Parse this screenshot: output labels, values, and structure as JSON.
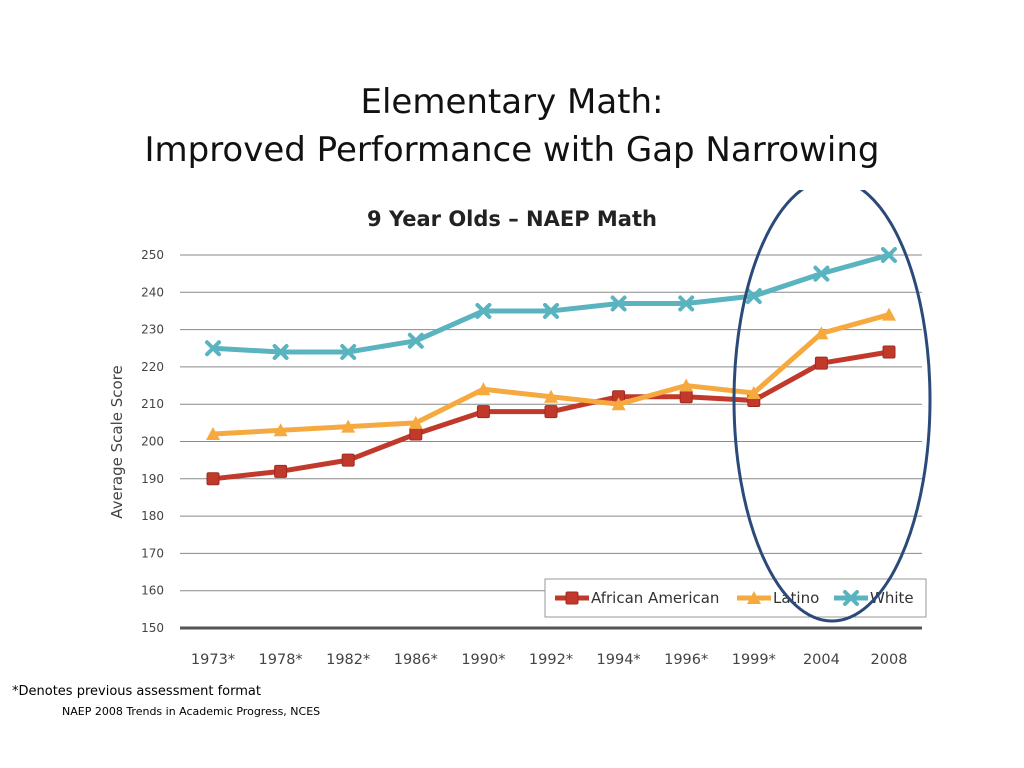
{
  "slide": {
    "title_line1": "Elementary Math:",
    "title_line2": "Improved Performance with Gap Narrowing",
    "footnote": "*Denotes previous assessment format",
    "source": "NAEP 2008 Trends in Academic Progress, NCES"
  },
  "chart_data": {
    "type": "line",
    "title": "9 Year Olds – NAEP Math",
    "xlabel": "",
    "ylabel": "Average Scale Score",
    "ylim": [
      150,
      250
    ],
    "yticks": [
      150,
      160,
      170,
      180,
      190,
      200,
      210,
      220,
      230,
      240,
      250
    ],
    "grid": true,
    "legend_position": "bottom-right",
    "categories": [
      "1973*",
      "1978*",
      "1982*",
      "1986*",
      "1990*",
      "1992*",
      "1994*",
      "1996*",
      "1999*",
      "2004",
      "2008"
    ],
    "series": [
      {
        "name": "African American",
        "color": "#c0392b",
        "marker": "square",
        "values": [
          190,
          192,
          195,
          202,
          208,
          208,
          212,
          212,
          211,
          221,
          224
        ]
      },
      {
        "name": "Latino",
        "color": "#f5a93e",
        "marker": "triangle",
        "values": [
          202,
          203,
          204,
          205,
          214,
          212,
          210,
          215,
          213,
          229,
          234
        ]
      },
      {
        "name": "White",
        "color": "#5ab4c0",
        "marker": "x",
        "values": [
          225,
          224,
          224,
          227,
          235,
          235,
          237,
          237,
          239,
          245,
          250
        ]
      }
    ],
    "annotation": {
      "shape": "ellipse",
      "color": "#2b4a7a",
      "highlights": [
        "1999*",
        "2004",
        "2008"
      ]
    }
  }
}
